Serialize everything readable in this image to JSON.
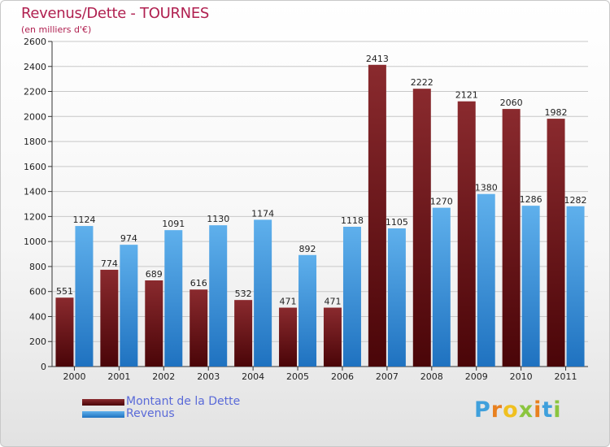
{
  "chart_data": {
    "type": "bar",
    "title": "Revenus/Dette - TOURNES",
    "subtitle": "(en milliers d'€)",
    "categories": [
      "2000",
      "2001",
      "2002",
      "2003",
      "2004",
      "2005",
      "2006",
      "2007",
      "2008",
      "2009",
      "2010",
      "2011"
    ],
    "series": [
      {
        "name": "Montant de la Dette",
        "values": [
          551,
          774,
          689,
          616,
          532,
          471,
          471,
          2413,
          2222,
          2121,
          2060,
          1982
        ],
        "color": "#7a1a1f"
      },
      {
        "name": "Revenus",
        "values": [
          1124,
          974,
          1091,
          1130,
          1174,
          892,
          1118,
          1105,
          1270,
          1380,
          1286,
          1282
        ],
        "color": "#3d9be0"
      }
    ],
    "ylim": [
      0,
      2600
    ],
    "yticks": [
      0,
      200,
      400,
      600,
      800,
      1000,
      1200,
      1400,
      1600,
      1800,
      2000,
      2200,
      2400,
      2600
    ],
    "grid": true,
    "legend_position": "bottom-left"
  },
  "logo": {
    "letters": [
      "P",
      "r",
      "o",
      "x",
      "i",
      "t",
      "i"
    ],
    "colors": [
      "#3fa0dc",
      "#e8801f",
      "#f0c020",
      "#8bc53f",
      "#e8801f",
      "#3fa0dc",
      "#8bc53f"
    ]
  }
}
